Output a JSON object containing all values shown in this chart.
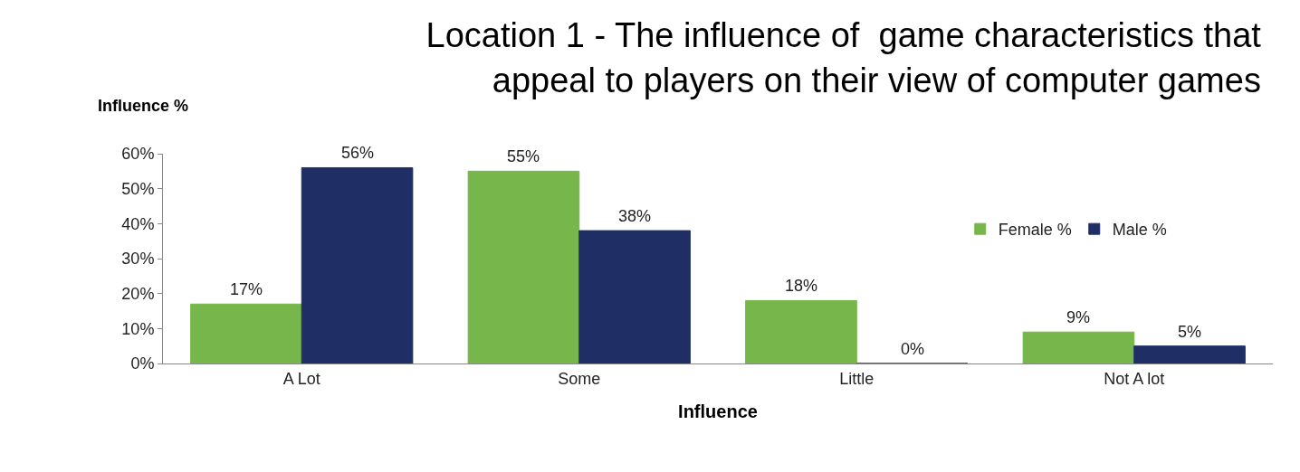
{
  "chart_data": {
    "type": "bar",
    "title": "Location 1 - The influence of  game characteristics that\nappeal to players on their view of computer games",
    "xlabel": "Influence",
    "ylabel": "Influence %",
    "categories": [
      "A Lot",
      "Some",
      "Little",
      "Not A lot"
    ],
    "series": [
      {
        "name": "Female %",
        "color": "#77b64a",
        "values": [
          17,
          55,
          18,
          9
        ],
        "value_labels": [
          "17%",
          "55%",
          "18%",
          "9%"
        ]
      },
      {
        "name": "Male %",
        "color": "#1f2f66",
        "values": [
          56,
          38,
          0,
          5
        ],
        "value_labels": [
          "56%",
          "38%",
          "0%",
          "5%"
        ]
      }
    ],
    "ylim": [
      0,
      60
    ],
    "yticks": [
      {
        "value": 0,
        "label": "0%"
      },
      {
        "value": 10,
        "label": "10%"
      },
      {
        "value": 20,
        "label": "20%"
      },
      {
        "value": 30,
        "label": "30%"
      },
      {
        "value": 40,
        "label": "40%"
      },
      {
        "value": 50,
        "label": "50%"
      },
      {
        "value": 60,
        "label": "60%"
      }
    ],
    "legend": "right"
  }
}
